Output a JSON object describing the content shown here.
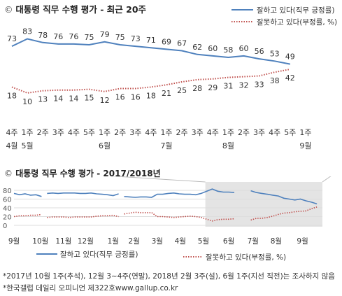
{
  "title_main": "대통령 직무 수행 평가 - 최근 20주",
  "title_sub": "대통령 직무 수행 평가 - 2017/2018년",
  "copyright_mark": "©",
  "colors": {
    "approve": "#4f81bd",
    "disapprove": "#c0504d",
    "grid": "#dddddd",
    "shade": "#e4e4e4"
  },
  "chart_data": [
    {
      "type": "line",
      "title": "대통령 직무 수행 평가 - 최근 20주",
      "categories": [
        [
          "4주",
          "4월"
        ],
        [
          "1주",
          "5월"
        ],
        [
          "2주",
          ""
        ],
        [
          "3주",
          ""
        ],
        [
          "4주",
          ""
        ],
        [
          "5주",
          ""
        ],
        [
          "1주",
          "6월"
        ],
        [
          "2주",
          ""
        ],
        [
          "3주",
          ""
        ],
        [
          "4주",
          ""
        ],
        [
          "1주",
          "7월"
        ],
        [
          "2주",
          ""
        ],
        [
          "3주",
          ""
        ],
        [
          "4주",
          ""
        ],
        [
          "1주",
          "8월"
        ],
        [
          "2주",
          ""
        ],
        [
          "3주",
          ""
        ],
        [
          "4주",
          ""
        ],
        [
          "5주",
          ""
        ],
        [
          "1주",
          "9월"
        ]
      ],
      "legend": {
        "position": "top-right",
        "approve": "잘하고 있다(직무 긍정률)",
        "disapprove": "잘못하고 있다(부정률, %)"
      },
      "series": [
        {
          "name": "잘하고 있다(직무 긍정률)",
          "style": "solid",
          "values": [
            73,
            83,
            78,
            76,
            76,
            75,
            79,
            75,
            73,
            71,
            69,
            67,
            62,
            60,
            58,
            60,
            56,
            53,
            49,
            null
          ]
        },
        {
          "name": "잘못하고 있다(부정률, %)",
          "style": "dotted",
          "values": [
            18,
            10,
            13,
            14,
            14,
            15,
            12,
            16,
            16,
            18,
            21,
            25,
            28,
            29,
            31,
            32,
            33,
            38,
            42,
            null
          ]
        }
      ],
      "ylim": [
        0,
        100
      ]
    },
    {
      "type": "line",
      "title": "대통령 직무 수행 평가 - 2017/2018년",
      "x_tick_labels": [
        "9월",
        "10월",
        "11월",
        "12월",
        "1월",
        "2월",
        "3월",
        "4월",
        "5월",
        "6월",
        "7월",
        "8월",
        "9월"
      ],
      "y_tick_labels": [
        "80",
        "60",
        "40",
        "20",
        "0"
      ],
      "ylim": [
        0,
        90
      ],
      "grid": true,
      "shaded_region": "최근 20주",
      "legend": {
        "position": "bottom",
        "approve": "잘하고 있다(직무 긍정률)",
        "disapprove": "잘못하고 있다(부정률, %)"
      },
      "series": [
        {
          "name": "잘하고 있다(직무 긍정률)",
          "style": "solid",
          "segments": [
            [
              [
                0.0,
                73
              ],
              [
                0.25,
                70
              ],
              [
                0.5,
                72
              ],
              [
                0.75,
                69
              ],
              [
                1.0,
                70
              ],
              [
                1.25,
                66
              ]
            ],
            [
              [
                1.5,
                73
              ],
              [
                1.75,
                74
              ],
              [
                2.0,
                73
              ],
              [
                2.25,
                74
              ],
              [
                2.5,
                74
              ],
              [
                2.75,
                74
              ],
              [
                3.0,
                73
              ],
              [
                3.25,
                73
              ],
              [
                3.5,
                74
              ],
              [
                3.75,
                72
              ],
              [
                4.0,
                71
              ],
              [
                4.25,
                70
              ],
              [
                4.5,
                68
              ],
              [
                4.75,
                72
              ]
            ],
            [
              [
                5.0,
                66
              ],
              [
                5.25,
                65
              ],
              [
                5.5,
                64
              ],
              [
                5.75,
                65
              ],
              [
                6.0,
                65
              ],
              [
                6.25,
                64
              ],
              [
                6.5,
                71
              ],
              [
                6.75,
                71
              ],
              [
                7.0,
                73
              ],
              [
                7.25,
                74
              ],
              [
                7.5,
                72
              ],
              [
                7.75,
                71
              ],
              [
                8.0,
                71
              ],
              [
                8.25,
                70
              ],
              [
                8.5,
                73
              ],
              [
                8.75,
                78
              ],
              [
                9.0,
                83
              ],
              [
                9.25,
                78
              ],
              [
                9.5,
                76
              ],
              [
                9.75,
                76
              ],
              [
                10.0,
                75
              ]
            ],
            [
              [
                10.75,
                79
              ],
              [
                11.0,
                75
              ],
              [
                11.25,
                73
              ],
              [
                11.5,
                71
              ],
              [
                11.75,
                69
              ],
              [
                12.0,
                67
              ],
              [
                12.25,
                62
              ],
              [
                12.5,
                60
              ],
              [
                12.75,
                58
              ],
              [
                13.0,
                60
              ],
              [
                13.25,
                56
              ],
              [
                13.5,
                53
              ],
              [
                13.75,
                49
              ]
            ]
          ]
        },
        {
          "name": "잘못하고 있다(부정률, %)",
          "style": "dotted",
          "segments": [
            [
              [
                0.0,
                20
              ],
              [
                0.25,
                22
              ],
              [
                0.5,
                22
              ],
              [
                0.75,
                23
              ],
              [
                1.0,
                23
              ],
              [
                1.25,
                25
              ]
            ],
            [
              [
                1.5,
                18
              ],
              [
                1.75,
                19
              ],
              [
                2.0,
                19
              ],
              [
                2.25,
                19
              ],
              [
                2.5,
                18
              ],
              [
                2.75,
                19
              ],
              [
                3.0,
                19
              ],
              [
                3.25,
                19
              ],
              [
                3.5,
                19
              ],
              [
                3.75,
                21
              ],
              [
                4.0,
                22
              ],
              [
                4.25,
                22
              ],
              [
                4.5,
                23
              ],
              [
                4.75,
                20
              ]
            ],
            [
              [
                5.0,
                26
              ],
              [
                5.25,
                28
              ],
              [
                5.5,
                30
              ],
              [
                5.75,
                29
              ],
              [
                6.0,
                29
              ],
              [
                6.25,
                29
              ],
              [
                6.5,
                20
              ],
              [
                6.75,
                20
              ],
              [
                7.0,
                19
              ],
              [
                7.25,
                18
              ],
              [
                7.5,
                19
              ],
              [
                7.75,
                20
              ],
              [
                8.0,
                21
              ],
              [
                8.25,
                20
              ],
              [
                8.5,
                18
              ],
              [
                8.75,
                14
              ],
              [
                9.0,
                10
              ],
              [
                9.25,
                13
              ],
              [
                9.5,
                14
              ],
              [
                9.75,
                14
              ],
              [
                10.0,
                15
              ]
            ],
            [
              [
                10.75,
                12
              ],
              [
                11.0,
                16
              ],
              [
                11.25,
                16
              ],
              [
                11.5,
                18
              ],
              [
                11.75,
                21
              ],
              [
                12.0,
                25
              ],
              [
                12.25,
                28
              ],
              [
                12.5,
                29
              ],
              [
                12.75,
                31
              ],
              [
                13.0,
                32
              ],
              [
                13.25,
                33
              ],
              [
                13.5,
                38
              ],
              [
                13.75,
                42
              ]
            ]
          ]
        }
      ]
    }
  ],
  "footnotes": [
    "*2017년 10월 1주(추석), 12월 3~4주(연말), 2018년 2월 3주(설), 6월 1주(지선 직전)는 조사하지 않음",
    "*한국갤럽 데일리 오피니언 제322호www.gallup.co.kr"
  ]
}
